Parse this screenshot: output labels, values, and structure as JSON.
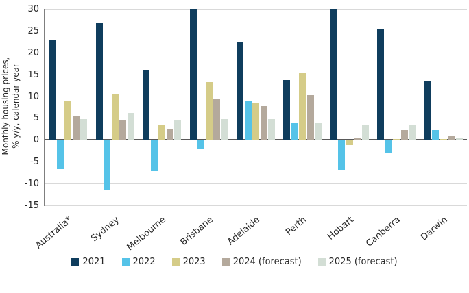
{
  "chart_data": {
    "type": "bar",
    "title": "",
    "ylabel_lines": [
      "Monthly housing prices,",
      "% y/y, calendar year"
    ],
    "categories": [
      "Australia*",
      "Sydney",
      "Melbourne",
      "Brisbane",
      "Adelaide",
      "Perth",
      "Hobart",
      "Canberra",
      "Darwin"
    ],
    "series": [
      {
        "name": "2021",
        "color": "#0f3d5d",
        "values": [
          23,
          26.8,
          16,
          30,
          22.3,
          13.7,
          30,
          25.5,
          13.5
        ]
      },
      {
        "name": "2022",
        "color": "#55c3e8",
        "values": [
          -6.5,
          -11.3,
          -7,
          -1.8,
          9,
          4,
          -6.7,
          -3,
          2.2
        ]
      },
      {
        "name": "2023",
        "color": "#d5cc88",
        "values": [
          9,
          10.4,
          3.4,
          13.3,
          8.4,
          15.4,
          -1,
          0.2,
          0.2
        ]
      },
      {
        "name": "2024 (forecast)",
        "color": "#b4a99c",
        "values": [
          5.6,
          4.6,
          2.5,
          9.4,
          7.8,
          10.3,
          0.4,
          2.3,
          1
        ]
      },
      {
        "name": "2025 (forecast)",
        "color": "#d3ded5",
        "values": [
          4.8,
          6.1,
          4.5,
          4.8,
          4.8,
          3.8,
          3.5,
          3.5,
          0.3
        ]
      }
    ],
    "ylim": [
      -15,
      30
    ],
    "yticks": [
      30,
      25,
      20,
      15,
      10,
      5,
      0,
      -5,
      -10,
      -15
    ],
    "grid": true,
    "legend_position": "bottom",
    "colors": {
      "gridline": "#d9d9d9",
      "zero_line": "#595959",
      "axis_line": "#7f7f7f",
      "text": "#262626"
    }
  }
}
